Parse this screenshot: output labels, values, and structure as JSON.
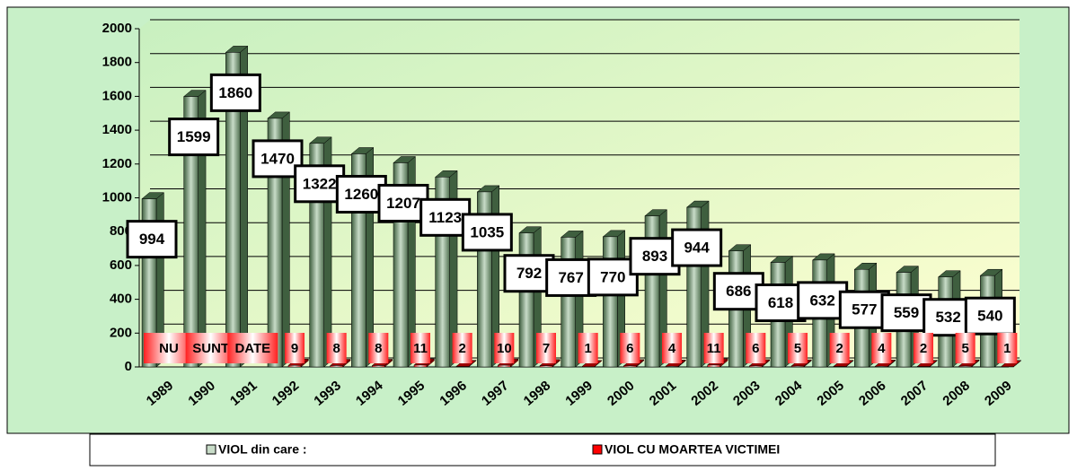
{
  "chart_data": {
    "type": "bar3d",
    "categories": [
      "1989",
      "1990",
      "1991",
      "1992",
      "1993",
      "1994",
      "1995",
      "1996",
      "1997",
      "1998",
      "1999",
      "2000",
      "2001",
      "2002",
      "2003",
      "2004",
      "2005",
      "2006",
      "2007",
      "2008",
      "2009"
    ],
    "series": [
      {
        "name": "VIOL din care :",
        "color": "#5f7f5f",
        "values": [
          994,
          1599,
          1860,
          1470,
          1322,
          1260,
          1207,
          1123,
          1035,
          792,
          767,
          770,
          893,
          944,
          686,
          618,
          632,
          577,
          559,
          532,
          540
        ]
      },
      {
        "name": "VIOL CU MOARTEA VICTIMEI",
        "color": "#ff0000",
        "values": [
          null,
          null,
          null,
          9,
          8,
          8,
          11,
          2,
          10,
          7,
          1,
          6,
          4,
          11,
          6,
          5,
          2,
          4,
          2,
          5,
          1
        ],
        "value_labels": [
          "NU",
          "SUNT",
          "DATE",
          null,
          null,
          null,
          null,
          null,
          null,
          null,
          null,
          null,
          null,
          null,
          null,
          null,
          null,
          null,
          null,
          null,
          null
        ]
      }
    ],
    "ylim": [
      0,
      2000
    ],
    "yticks": [
      0,
      200,
      400,
      600,
      800,
      1000,
      1200,
      1400,
      1600,
      1800,
      2000
    ],
    "grid": true
  }
}
